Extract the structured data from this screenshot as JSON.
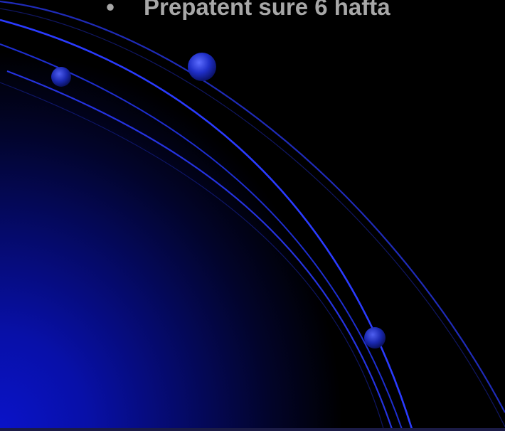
{
  "slide": {
    "bullet": "•",
    "text": "Prepatent sure 6 hafta"
  },
  "colors": {
    "background": "#000000",
    "glow": "#0a13c9",
    "arc": "#2a3bff",
    "text": "#a7a7a7"
  }
}
